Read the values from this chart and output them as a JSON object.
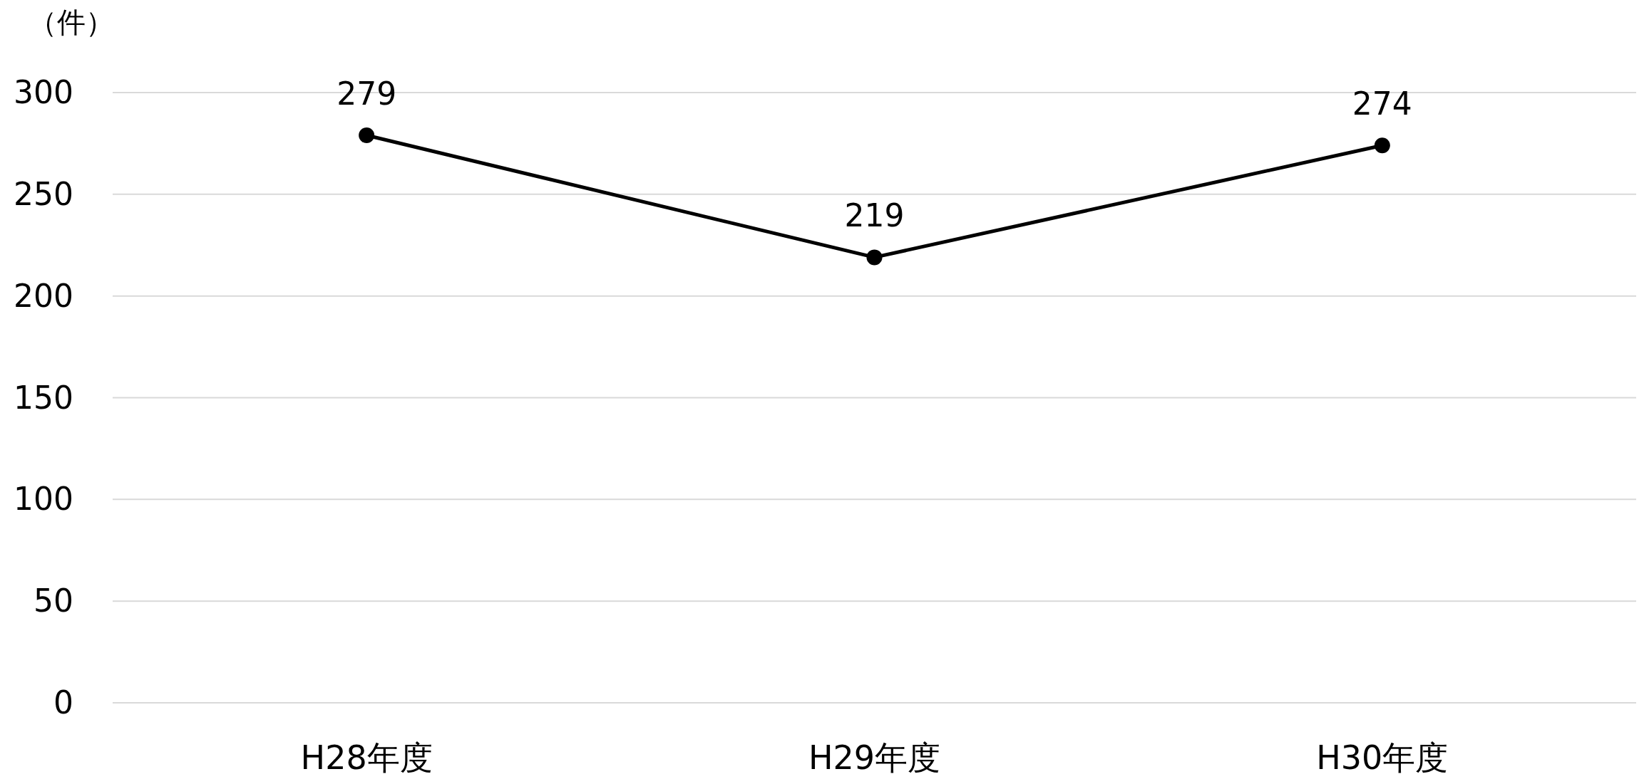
{
  "chart_data": {
    "type": "line",
    "ylabel": "（件）",
    "categories": [
      "H28年度",
      "H29年度",
      "H30年度"
    ],
    "series": [
      {
        "color": "#000000",
        "values": [
          279,
          219,
          274
        ]
      }
    ],
    "ylim": [
      0,
      300
    ],
    "yticks": [
      0,
      50,
      100,
      150,
      200,
      250,
      300
    ],
    "grid": "y",
    "marker": "circle",
    "line_style": "solid",
    "data_labels": true
  }
}
